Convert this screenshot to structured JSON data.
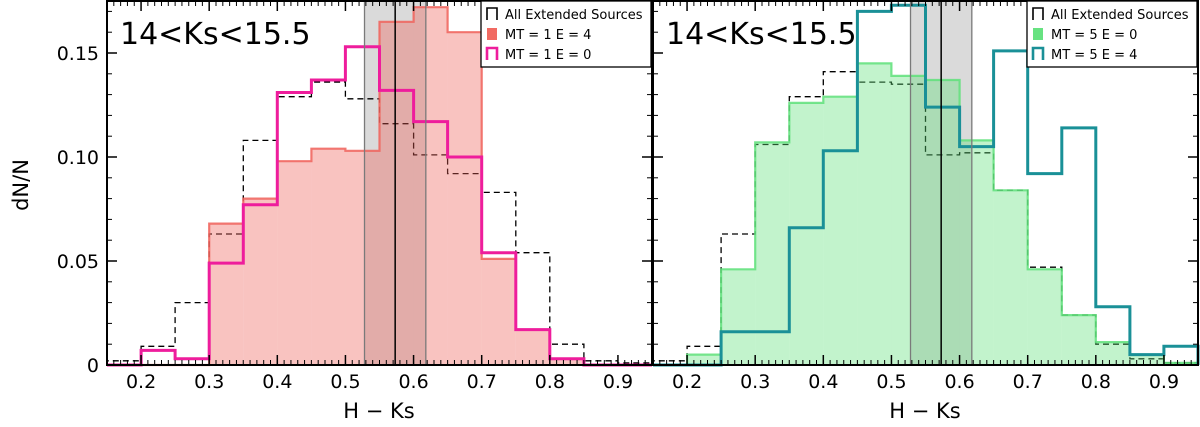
{
  "chart_data": [
    {
      "type": "histogram",
      "title": "14<Ks<15.5",
      "xlabel": "H − Ks",
      "ylabel": "dN/N",
      "xlim": [
        0.15,
        0.95
      ],
      "ylim": [
        0,
        0.175
      ],
      "xticks": [
        "0.2",
        "0.3",
        "0.4",
        "0.5",
        "0.6",
        "0.7",
        "0.8",
        "0.9"
      ],
      "yticks": [
        "0",
        "0.05",
        "0.10",
        "0.15"
      ],
      "bin_edges": [
        0.15,
        0.2,
        0.25,
        0.3,
        0.35,
        0.4,
        0.45,
        0.5,
        0.55,
        0.6,
        0.65,
        0.7,
        0.75,
        0.8,
        0.85,
        0.9,
        0.95
      ],
      "shaded_band": [
        0.528,
        0.618
      ],
      "vertical_line": 0.573,
      "legend_position": "top-right",
      "series": [
        {
          "name": "All Extended Sources",
          "style": "dashed-step",
          "color": "#000000",
          "values": [
            0.002,
            0.009,
            0.03,
            0.063,
            0.108,
            0.129,
            0.136,
            0.128,
            0.116,
            0.101,
            0.092,
            0.083,
            0.054,
            0.01,
            0.002,
            0.001
          ]
        },
        {
          "name": "MT = 1 E = 4",
          "style": "filled-step",
          "color": "#f0625a",
          "values": [
            0.0,
            0.0,
            0.0,
            0.068,
            0.08,
            0.098,
            0.104,
            0.103,
            0.165,
            0.172,
            0.16,
            0.051,
            0.017,
            0.003,
            0.0,
            0.0
          ]
        },
        {
          "name": "MT = 1 E = 0",
          "style": "step",
          "color": "#ee1d9c",
          "values": [
            0.0,
            0.007,
            0.003,
            0.049,
            0.077,
            0.131,
            0.137,
            0.153,
            0.132,
            0.117,
            0.1,
            0.054,
            0.017,
            0.003,
            0.0,
            0.0
          ]
        }
      ]
    },
    {
      "type": "histogram",
      "title": "14<Ks<15.5",
      "xlabel": "H − Ks",
      "ylabel": "",
      "xlim": [
        0.15,
        0.95
      ],
      "ylim": [
        0,
        0.175
      ],
      "xticks": [
        "0.2",
        "0.3",
        "0.4",
        "0.5",
        "0.6",
        "0.7",
        "0.8",
        "0.9"
      ],
      "yticks": [],
      "bin_edges": [
        0.15,
        0.2,
        0.25,
        0.3,
        0.35,
        0.4,
        0.45,
        0.5,
        0.55,
        0.6,
        0.65,
        0.7,
        0.75,
        0.8,
        0.85,
        0.9,
        0.95
      ],
      "shaded_band": [
        0.528,
        0.618
      ],
      "vertical_line": 0.573,
      "legend_position": "top-right",
      "series": [
        {
          "name": "All Extended Sources",
          "style": "dashed-step",
          "color": "#000000",
          "values": [
            0.002,
            0.009,
            0.063,
            0.106,
            0.129,
            0.141,
            0.136,
            0.135,
            0.101,
            0.102,
            0.084,
            0.047,
            0.024,
            0.01,
            0.003,
            0.001
          ]
        },
        {
          "name": "MT = 5 E = 0",
          "style": "filled-step",
          "color": "#5fe07a",
          "values": [
            0.0,
            0.005,
            0.046,
            0.107,
            0.126,
            0.129,
            0.145,
            0.139,
            0.137,
            0.108,
            0.084,
            0.046,
            0.024,
            0.011,
            0.005,
            0.001
          ]
        },
        {
          "name": "MT = 5 E = 4",
          "style": "step",
          "color": "#1a9097",
          "values": [
            0.0,
            0.0,
            0.016,
            0.016,
            0.066,
            0.103,
            0.17,
            0.173,
            0.124,
            0.105,
            0.151,
            0.092,
            0.114,
            0.028,
            0.005,
            0.009
          ]
        }
      ]
    }
  ]
}
